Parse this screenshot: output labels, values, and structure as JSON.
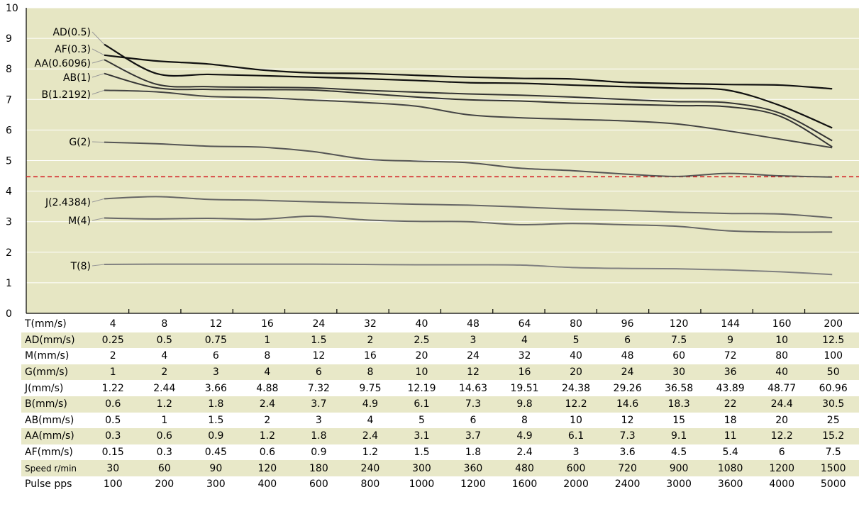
{
  "chart_data": {
    "type": "line",
    "ylim": [
      0,
      10
    ],
    "yticks": [
      "0",
      "1",
      "2",
      "3",
      "4",
      "5",
      "6",
      "7",
      "8",
      "9",
      "10"
    ],
    "x": [
      "4",
      "8",
      "12",
      "16",
      "24",
      "32",
      "40",
      "48",
      "64",
      "80",
      "96",
      "120",
      "144",
      "160",
      "200"
    ],
    "reference_line": 4.47,
    "colors": {
      "plot_bg": "#e6e6c3",
      "grid": "#ffffff",
      "reference": "#d62728"
    },
    "series": [
      {
        "name": "AD(0.5)",
        "color": "#111111",
        "values": [
          8.8,
          7.85,
          7.82,
          7.78,
          7.73,
          7.68,
          7.62,
          7.55,
          7.53,
          7.47,
          7.42,
          7.37,
          7.3,
          6.8,
          6.07
        ]
      },
      {
        "name": "AF(0.3)",
        "color": "#111111",
        "values": [
          8.45,
          8.26,
          8.16,
          7.97,
          7.87,
          7.85,
          7.79,
          7.73,
          7.69,
          7.67,
          7.56,
          7.52,
          7.49,
          7.47,
          7.35
        ]
      },
      {
        "name": "AA(0.6096)",
        "color": "#333333",
        "values": [
          8.3,
          7.5,
          7.42,
          7.4,
          7.38,
          7.3,
          7.24,
          7.18,
          7.14,
          7.08,
          7.0,
          6.93,
          6.89,
          6.55,
          5.65
        ]
      },
      {
        "name": "AB(1)",
        "color": "#333333",
        "values": [
          7.85,
          7.38,
          7.33,
          7.32,
          7.31,
          7.2,
          7.08,
          6.99,
          6.95,
          6.88,
          6.84,
          6.8,
          6.76,
          6.45,
          5.45
        ]
      },
      {
        "name": "B(1.2192)",
        "color": "#444444",
        "values": [
          7.3,
          7.25,
          7.1,
          7.06,
          6.98,
          6.9,
          6.78,
          6.5,
          6.4,
          6.35,
          6.3,
          6.2,
          5.97,
          5.7,
          5.42
        ]
      },
      {
        "name": "G(2)",
        "color": "#555555",
        "values": [
          5.6,
          5.55,
          5.47,
          5.44,
          5.3,
          5.05,
          4.98,
          4.93,
          4.75,
          4.67,
          4.56,
          4.48,
          4.58,
          4.5,
          4.46
        ]
      },
      {
        "name": "J(2.4384)",
        "color": "#666666",
        "values": [
          3.75,
          3.82,
          3.73,
          3.7,
          3.65,
          3.61,
          3.57,
          3.54,
          3.48,
          3.41,
          3.37,
          3.31,
          3.27,
          3.25,
          3.13
        ]
      },
      {
        "name": "M(4)",
        "color": "#666666",
        "values": [
          3.12,
          3.09,
          3.11,
          3.08,
          3.18,
          3.06,
          3.01,
          3.0,
          2.9,
          2.94,
          2.9,
          2.85,
          2.7,
          2.66,
          2.66
        ]
      },
      {
        "name": "T(8)",
        "color": "#808080",
        "values": [
          1.6,
          1.61,
          1.61,
          1.61,
          1.61,
          1.6,
          1.59,
          1.59,
          1.58,
          1.5,
          1.47,
          1.46,
          1.42,
          1.36,
          1.27
        ]
      }
    ]
  },
  "table": {
    "rows": [
      {
        "label": "T(mm/s)",
        "values": [
          "4",
          "8",
          "12",
          "16",
          "24",
          "32",
          "40",
          "48",
          "64",
          "80",
          "96",
          "120",
          "144",
          "160",
          "200"
        ]
      },
      {
        "label": "AD(mm/s)",
        "values": [
          "0.25",
          "0.5",
          "0.75",
          "1",
          "1.5",
          "2",
          "2.5",
          "3",
          "4",
          "5",
          "6",
          "7.5",
          "9",
          "10",
          "12.5"
        ]
      },
      {
        "label": "M(mm/s)",
        "values": [
          "2",
          "4",
          "6",
          "8",
          "12",
          "16",
          "20",
          "24",
          "32",
          "40",
          "48",
          "60",
          "72",
          "80",
          "100"
        ]
      },
      {
        "label": "G(mm/s)",
        "values": [
          "1",
          "2",
          "3",
          "4",
          "6",
          "8",
          "10",
          "12",
          "16",
          "20",
          "24",
          "30",
          "36",
          "40",
          "50"
        ]
      },
      {
        "label": "J(mm/s)",
        "values": [
          "1.22",
          "2.44",
          "3.66",
          "4.88",
          "7.32",
          "9.75",
          "12.19",
          "14.63",
          "19.51",
          "24.38",
          "29.26",
          "36.58",
          "43.89",
          "48.77",
          "60.96"
        ]
      },
      {
        "label": "B(mm/s)",
        "values": [
          "0.6",
          "1.2",
          "1.8",
          "2.4",
          "3.7",
          "4.9",
          "6.1",
          "7.3",
          "9.8",
          "12.2",
          "14.6",
          "18.3",
          "22",
          "24.4",
          "30.5"
        ]
      },
      {
        "label": "AB(mm/s)",
        "values": [
          "0.5",
          "1",
          "1.5",
          "2",
          "3",
          "4",
          "5",
          "6",
          "8",
          "10",
          "12",
          "15",
          "18",
          "20",
          "25"
        ]
      },
      {
        "label": "AA(mm/s)",
        "values": [
          "0.3",
          "0.6",
          "0.9",
          "1.2",
          "1.8",
          "2.4",
          "3.1",
          "3.7",
          "4.9",
          "6.1",
          "7.3",
          "9.1",
          "11",
          "12.2",
          "15.2"
        ]
      },
      {
        "label": "AF(mm/s)",
        "values": [
          "0.15",
          "0.3",
          "0.45",
          "0.6",
          "0.9",
          "1.2",
          "1.5",
          "1.8",
          "2.4",
          "3",
          "3.6",
          "4.5",
          "5.4",
          "6",
          "7.5"
        ]
      },
      {
        "label": "Speed r/min",
        "values": [
          "30",
          "60",
          "90",
          "120",
          "180",
          "240",
          "300",
          "360",
          "480",
          "600",
          "720",
          "900",
          "1080",
          "1200",
          "1500"
        ]
      },
      {
        "label": "Pulse pps",
        "values": [
          "100",
          "200",
          "300",
          "400",
          "600",
          "800",
          "1000",
          "1200",
          "1600",
          "2000",
          "2400",
          "3000",
          "3600",
          "4000",
          "5000"
        ]
      }
    ]
  }
}
